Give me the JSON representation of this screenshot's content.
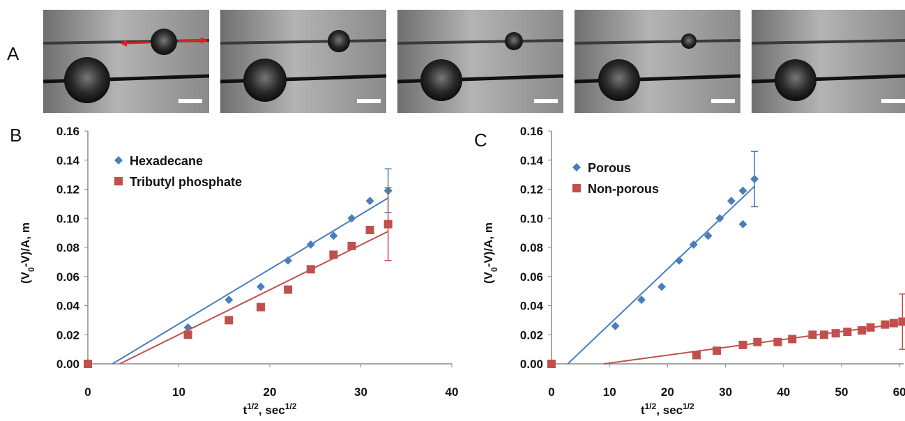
{
  "images": {
    "panel_label": "A"
  },
  "chart_data": [
    {
      "type": "scatter",
      "panel_label": "B",
      "x_label": [
        {
          "text": "t"
        },
        {
          "text": "1/2",
          "sup": true
        },
        {
          "text": ", sec"
        },
        {
          "text": "1/2",
          "sup": true
        }
      ],
      "y_label": [
        {
          "text": "(V"
        },
        {
          "text": "0",
          "sub": true
        },
        {
          "text": "-V)/A, m"
        }
      ],
      "xlim": [
        0,
        40
      ],
      "xticks": [
        0,
        10,
        20,
        30,
        40
      ],
      "ylim": [
        0,
        0.16
      ],
      "yticks": [
        {
          "value": 0,
          "label": "0.00"
        },
        {
          "value": 0.02,
          "label": "0.02"
        },
        {
          "value": 0.04,
          "label": "0.04"
        },
        {
          "value": 0.06,
          "label": "0.06"
        },
        {
          "value": 0.08,
          "label": "0.08"
        },
        {
          "value": 0.1,
          "label": "0.10"
        },
        {
          "value": 0.12,
          "label": "0.12"
        },
        {
          "value": 0.14,
          "label": "0.14"
        },
        {
          "value": 0.16,
          "label": "0.16"
        }
      ],
      "legend": "upper left",
      "series": [
        {
          "name": "Hexadecane",
          "color": "#4a7ebb",
          "marker": "diamond",
          "x": [
            0,
            11,
            15.5,
            19,
            22,
            24.5,
            27,
            29,
            31,
            33
          ],
          "values": [
            0,
            0.025,
            0.044,
            0.053,
            0.071,
            0.082,
            0.088,
            0.1,
            0.112,
            0.119
          ],
          "errors": [
            null,
            null,
            null,
            null,
            null,
            null,
            null,
            null,
            null,
            0.015
          ],
          "fit": {
            "x": [
              2.7,
              33
            ],
            "y": [
              0,
              0.114
            ]
          }
        },
        {
          "name": "Tributyl phosphate",
          "color": "#c0504d",
          "marker": "square",
          "x": [
            0,
            11,
            15.5,
            19,
            22,
            24.5,
            27,
            29,
            31,
            33
          ],
          "values": [
            0,
            0.02,
            0.03,
            0.039,
            0.051,
            0.065,
            0.075,
            0.081,
            0.092,
            0.096
          ],
          "errors": [
            null,
            null,
            null,
            null,
            null,
            null,
            null,
            null,
            null,
            0.025
          ],
          "fit": {
            "x": [
              3.5,
              33
            ],
            "y": [
              0,
              0.091
            ]
          }
        }
      ]
    },
    {
      "type": "scatter",
      "panel_label": "C",
      "x_label": [
        {
          "text": "t"
        },
        {
          "text": "1/2",
          "sup": true
        },
        {
          "text": ", sec"
        },
        {
          "text": "1/2",
          "sup": true
        }
      ],
      "y_label": [
        {
          "text": "(V"
        },
        {
          "text": "0",
          "sub": true
        },
        {
          "text": "-V)/A, m"
        }
      ],
      "xlim": [
        0,
        60.7
      ],
      "xticks": [
        0,
        10,
        20,
        30,
        40,
        50,
        60
      ],
      "ylim": [
        0,
        0.16
      ],
      "yticks": [
        {
          "value": 0,
          "label": "0.00"
        },
        {
          "value": 0.02,
          "label": "0.02"
        },
        {
          "value": 0.04,
          "label": "0.04"
        },
        {
          "value": 0.06,
          "label": "0.06"
        },
        {
          "value": 0.08,
          "label": "0.08"
        },
        {
          "value": 0.1,
          "label": "0.10"
        },
        {
          "value": 0.12,
          "label": "0.12"
        },
        {
          "value": 0.14,
          "label": "0.14"
        },
        {
          "value": 0.16,
          "label": "0.16"
        }
      ],
      "legend": "upper left",
      "series": [
        {
          "name": "Porous",
          "color": "#4a7ebb",
          "marker": "diamond",
          "x": [
            0,
            11,
            15.5,
            19,
            22,
            24.5,
            27,
            29,
            31,
            33,
            33,
            35
          ],
          "values": [
            0,
            0.026,
            0.044,
            0.053,
            0.071,
            0.082,
            0.088,
            0.1,
            0.112,
            0.119,
            0.096,
            0.127
          ],
          "errors": [
            null,
            null,
            null,
            null,
            null,
            null,
            null,
            null,
            null,
            null,
            null,
            0.019
          ],
          "fit": {
            "x": [
              2.8,
              35
            ],
            "y": [
              0,
              0.122
            ]
          }
        },
        {
          "name": "Non-porous",
          "color": "#c0504d",
          "marker": "square",
          "x": [
            0,
            25,
            28.5,
            33,
            35.5,
            39,
            41.5,
            45,
            47,
            49,
            51,
            53.5,
            55,
            57.5,
            59,
            60.5
          ],
          "values": [
            0,
            0.006,
            0.009,
            0.013,
            0.015,
            0.015,
            0.017,
            0.02,
            0.02,
            0.021,
            0.022,
            0.023,
            0.025,
            0.027,
            0.028,
            0.029
          ],
          "errors": [
            null,
            null,
            null,
            null,
            null,
            null,
            null,
            null,
            null,
            null,
            null,
            null,
            null,
            null,
            null,
            0.019
          ],
          "fit": {
            "x": [
              9,
              60.7
            ],
            "y": [
              0,
              0.028
            ]
          }
        }
      ]
    }
  ]
}
